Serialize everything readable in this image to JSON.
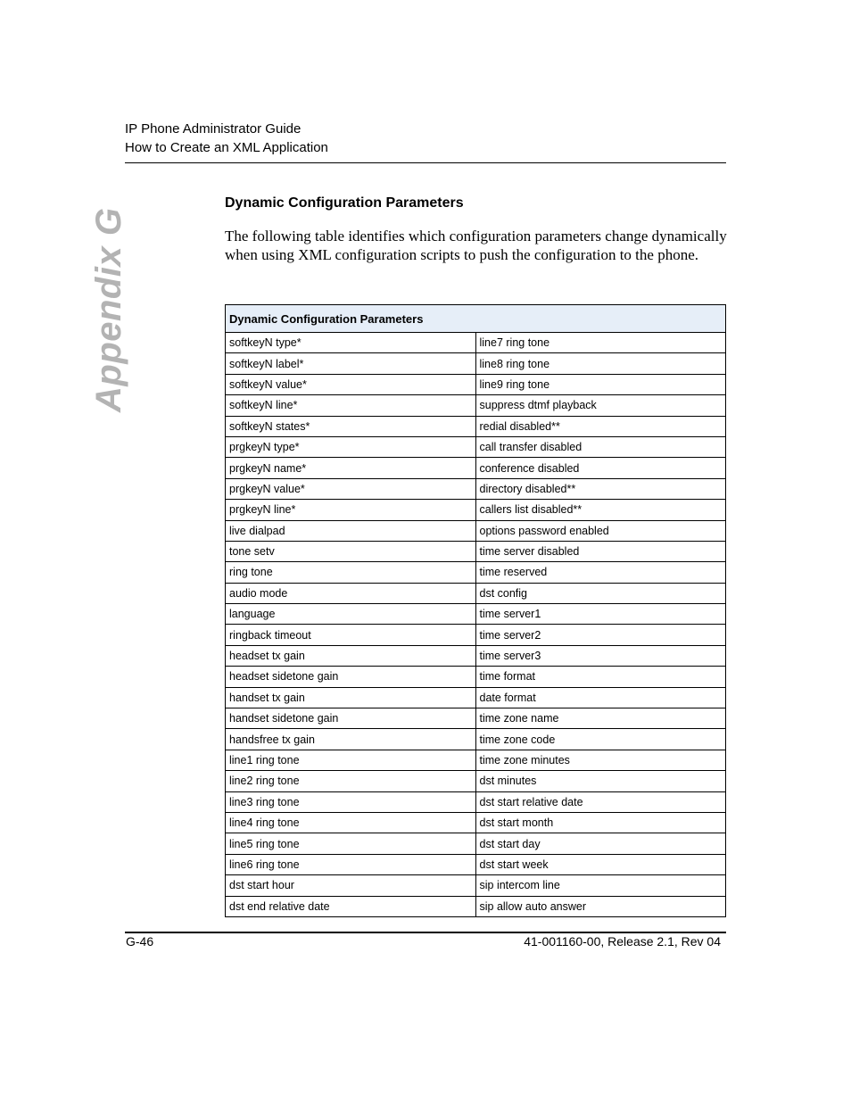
{
  "header": {
    "line1": "IP Phone Administrator Guide",
    "line2": "How to Create an XML Application"
  },
  "side_tab": "Appendix G",
  "section_title": "Dynamic Configuration Parameters",
  "intro": "The following table identifies which configuration parameters change dynamically when using XML configuration scripts to push the configuration to the phone.",
  "table": {
    "header": "Dynamic Configuration Parameters",
    "rows": [
      [
        "softkeyN type*",
        "line7 ring tone"
      ],
      [
        "softkeyN label*",
        "line8 ring tone"
      ],
      [
        "softkeyN value*",
        "line9 ring tone"
      ],
      [
        "softkeyN line*",
        "suppress dtmf playback"
      ],
      [
        "softkeyN states*",
        "redial disabled**"
      ],
      [
        "prgkeyN type*",
        "call transfer disabled"
      ],
      [
        "prgkeyN name*",
        "conference disabled"
      ],
      [
        "prgkeyN value*",
        "directory disabled**"
      ],
      [
        "prgkeyN line*",
        "callers list disabled**"
      ],
      [
        "live dialpad",
        "options password enabled"
      ],
      [
        "tone setv",
        "time server disabled"
      ],
      [
        "ring tone",
        "time reserved"
      ],
      [
        "audio mode",
        "dst config"
      ],
      [
        "language",
        "time server1"
      ],
      [
        "ringback timeout",
        "time server2"
      ],
      [
        "headset tx gain",
        "time server3"
      ],
      [
        "headset sidetone gain",
        "time format"
      ],
      [
        "handset tx gain",
        "date format"
      ],
      [
        "handset sidetone gain",
        "time zone name"
      ],
      [
        "handsfree tx gain",
        "time zone code"
      ],
      [
        "line1 ring tone",
        "time zone minutes"
      ],
      [
        "line2 ring tone",
        "dst minutes"
      ],
      [
        "line3 ring tone",
        "dst start relative date"
      ],
      [
        "line4 ring tone",
        "dst start month"
      ],
      [
        "line5 ring tone",
        "dst start day"
      ],
      [
        "line6 ring tone",
        "dst start week"
      ],
      [
        "dst start hour",
        "sip intercom line"
      ],
      [
        "dst end relative date",
        "sip allow auto answer"
      ]
    ]
  },
  "footer": {
    "page": "G-46",
    "doc": "41-001160-00, Release 2.1, Rev 04"
  }
}
